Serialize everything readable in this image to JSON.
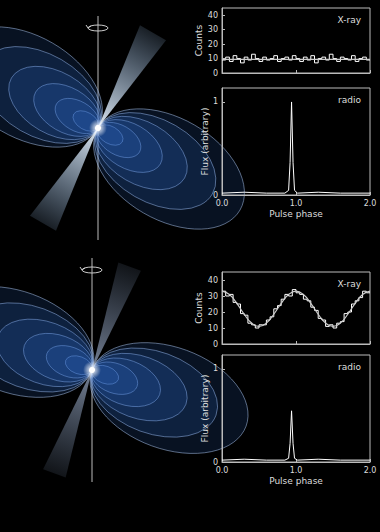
{
  "chart_data": [
    {
      "type": "histogram",
      "title": "X-ray",
      "ylabel": "Counts",
      "tick_labels": "y",
      "color": "#ffffff",
      "bins": [
        0,
        0.05,
        0.1,
        0.15,
        0.2,
        0.25,
        0.3,
        0.35,
        0.4,
        0.45,
        0.5,
        0.55,
        0.6,
        0.65,
        0.7,
        0.75,
        0.8,
        0.85,
        0.9,
        0.95,
        1.0,
        1.05,
        1.1,
        1.15,
        1.2,
        1.25,
        1.3,
        1.35,
        1.4,
        1.45,
        1.5,
        1.55,
        1.6,
        1.65,
        1.7,
        1.75,
        1.8,
        1.85,
        1.9,
        1.95,
        2.0
      ],
      "values": [
        9,
        11,
        8,
        12,
        10,
        7,
        11,
        9,
        13,
        10,
        8,
        11,
        9,
        10,
        12,
        8,
        10,
        11,
        9,
        12,
        10,
        8,
        11,
        9,
        12,
        7,
        10,
        11,
        9,
        13,
        10,
        8,
        11,
        10,
        9,
        12,
        8,
        10,
        11,
        9
      ],
      "fit": {
        "x": [
          0,
          2
        ],
        "values": [
          9.5,
          9.5
        ],
        "color": "#cccccc"
      },
      "xlim": [
        0,
        2
      ],
      "xticks": [
        0,
        1,
        2
      ],
      "ylim": [
        0,
        45
      ],
      "yticks": [
        0,
        10,
        20,
        30,
        40
      ]
    },
    {
      "type": "line",
      "title": "radio",
      "xlabel": "Pulse phase",
      "ylabel": "Flux (arbitrary)",
      "color": "#ffffff",
      "x": [
        0,
        0.3,
        0.6,
        0.85,
        0.9,
        0.92,
        0.94,
        0.96,
        0.98,
        1.02,
        1.3,
        1.6,
        2.0
      ],
      "values": [
        0.02,
        0.03,
        0.02,
        0.02,
        0.05,
        0.35,
        1.0,
        0.35,
        0.05,
        0.02,
        0.03,
        0.02,
        0.02
      ],
      "xlim": [
        0,
        2
      ],
      "xticks": [
        {
          "value": 0,
          "label": "0.0"
        },
        {
          "value": 1,
          "label": "1.0"
        },
        {
          "value": 2,
          "label": "2.0"
        }
      ],
      "ylim": [
        0,
        1.15
      ],
      "yticks": [
        0,
        1
      ]
    },
    {
      "type": "histogram",
      "title": "X-ray",
      "ylabel": "Counts",
      "tick_labels": "y",
      "color": "#ffffff",
      "bins": [
        0,
        0.05,
        0.1,
        0.15,
        0.2,
        0.25,
        0.3,
        0.35,
        0.4,
        0.45,
        0.5,
        0.55,
        0.6,
        0.65,
        0.7,
        0.75,
        0.8,
        0.85,
        0.9,
        0.95,
        1.0,
        1.05,
        1.1,
        1.15,
        1.2,
        1.25,
        1.3,
        1.35,
        1.4,
        1.45,
        1.5,
        1.55,
        1.6,
        1.65,
        1.7,
        1.75,
        1.8,
        1.85,
        1.9,
        1.95,
        2.0
      ],
      "values": [
        33,
        30,
        31,
        26,
        25,
        19,
        18,
        13,
        12,
        10,
        12,
        12,
        15,
        17,
        22,
        24,
        28,
        31,
        30,
        34,
        32,
        31,
        28,
        27,
        23,
        21,
        16,
        15,
        11,
        12,
        10,
        13,
        14,
        19,
        20,
        25,
        27,
        29,
        33,
        32
      ],
      "fit": {
        "x": [
          0,
          0.1,
          0.2,
          0.3,
          0.4,
          0.5,
          0.6,
          0.7,
          0.8,
          0.9,
          1.0,
          1.1,
          1.2,
          1.3,
          1.4,
          1.5,
          1.6,
          1.7,
          1.8,
          1.9,
          2.0
        ],
        "values": [
          33,
          30.9,
          25.4,
          18.6,
          13.1,
          11,
          13.1,
          18.6,
          25.4,
          30.9,
          33,
          30.9,
          25.4,
          18.6,
          13.1,
          11,
          13.1,
          18.6,
          25.4,
          30.9,
          33
        ],
        "color": "#cccccc"
      },
      "xlim": [
        0,
        2
      ],
      "xticks": [
        0,
        1,
        2
      ],
      "ylim": [
        0,
        45
      ],
      "yticks": [
        0,
        10,
        20,
        30,
        40
      ]
    },
    {
      "type": "line",
      "title": "radio",
      "xlabel": "Pulse phase",
      "ylabel": "Flux (arbitrary)",
      "color": "#ffffff",
      "x": [
        0,
        0.3,
        0.6,
        0.85,
        0.9,
        0.92,
        0.94,
        0.96,
        0.98,
        1.02,
        1.3,
        1.6,
        2.0
      ],
      "values": [
        0.02,
        0.03,
        0.02,
        0.02,
        0.04,
        0.2,
        0.55,
        0.2,
        0.04,
        0.02,
        0.03,
        0.02,
        0.02
      ],
      "xlim": [
        0,
        2
      ],
      "xticks": [
        {
          "value": 0,
          "label": "0.0"
        },
        {
          "value": 1,
          "label": "1.0"
        },
        {
          "value": 2,
          "label": "2.0"
        }
      ],
      "ylim": [
        0,
        1.15
      ],
      "yticks": [
        0,
        1
      ]
    }
  ]
}
